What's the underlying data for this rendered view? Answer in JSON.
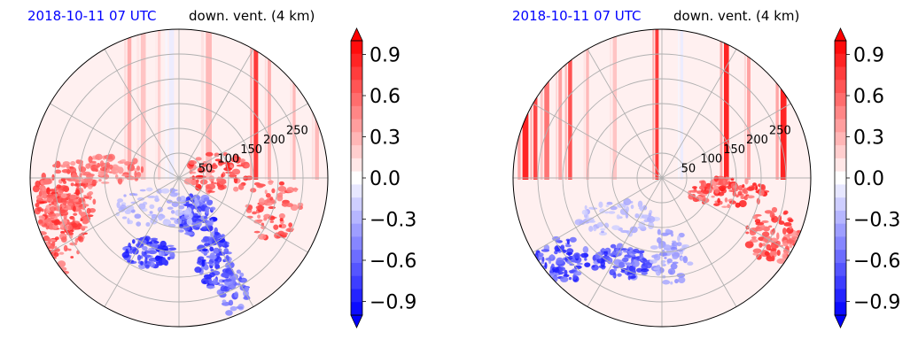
{
  "chart_data": [
    {
      "type": "heatmap",
      "projection": "polar",
      "title_left": "2018-10-11 07 UTC",
      "title_right": "down. vent. (4 km)",
      "title_left_color": "#0000ff",
      "r_ticks": [
        50,
        100,
        150,
        200,
        250
      ],
      "r_tick_labels": [
        "50",
        "100",
        "150",
        "200",
        "250"
      ],
      "r_max": 300,
      "grid": true,
      "colormap": "bwr",
      "colorbar": {
        "vmin": -1.0,
        "vmax": 1.0,
        "ticks": [
          0.9,
          0.6,
          0.3,
          0.0,
          -0.3,
          -0.6,
          -0.9
        ],
        "tick_labels": [
          "0.9",
          "0.6",
          "0.3",
          "0.0",
          "−0.3",
          "−0.6",
          "−0.9"
        ],
        "extend": "both",
        "levels": 21
      },
      "features": {
        "vertical_streaks": [
          {
            "x": -100,
            "width": 8,
            "value": 0.35
          },
          {
            "x": -72,
            "width": 10,
            "value": 0.25
          },
          {
            "x": -40,
            "width": 6,
            "value": 0.2
          },
          {
            "x": 60,
            "width": 12,
            "value": 0.3
          },
          {
            "x": 155,
            "width": 9,
            "value": 0.85
          },
          {
            "x": 182,
            "width": 7,
            "value": 0.35
          },
          {
            "x": 232,
            "width": 6,
            "value": 0.3
          },
          {
            "x": 278,
            "width": 8,
            "value": 0.3
          },
          {
            "x": -15,
            "width": 10,
            "value": -0.08
          }
        ],
        "clusters": [
          {
            "x": -230,
            "y": -40,
            "rx": 60,
            "ry": 70,
            "n": 170,
            "value": 0.9
          },
          {
            "x": -235,
            "y": -105,
            "rx": 45,
            "ry": 90,
            "n": 110,
            "value": 0.85
          },
          {
            "x": -150,
            "y": 15,
            "rx": 80,
            "ry": 30,
            "n": 90,
            "value": 0.7
          },
          {
            "x": 80,
            "y": 10,
            "rx": 70,
            "ry": 40,
            "n": 80,
            "value": 0.95
          },
          {
            "x": 190,
            "y": -60,
            "rx": 55,
            "ry": 65,
            "n": 70,
            "value": 0.9
          },
          {
            "x": 30,
            "y": -75,
            "rx": 45,
            "ry": 40,
            "n": 90,
            "value": -0.95
          },
          {
            "x": -60,
            "y": -150,
            "rx": 50,
            "ry": 30,
            "n": 90,
            "value": -0.95
          },
          {
            "x": 70,
            "y": -165,
            "rx": 35,
            "ry": 60,
            "n": 90,
            "value": -0.95
          },
          {
            "x": 110,
            "y": -230,
            "rx": 30,
            "ry": 45,
            "n": 50,
            "value": -0.8
          },
          {
            "x": -40,
            "y": -60,
            "rx": 90,
            "ry": 40,
            "n": 70,
            "value": -0.4
          }
        ]
      }
    },
    {
      "type": "heatmap",
      "projection": "polar",
      "title_left": "2018-10-11 07 UTC",
      "title_right": "down. vent. (4 km)",
      "title_left_color": "#0000ff",
      "r_ticks": [
        50,
        100,
        150,
        200,
        250
      ],
      "r_tick_labels": [
        "50",
        "100",
        "150",
        "200",
        "250"
      ],
      "r_max": 300,
      "grid": true,
      "colormap": "bwr",
      "colorbar": {
        "vmin": -1.0,
        "vmax": 1.0,
        "ticks": [
          0.9,
          0.6,
          0.3,
          0.0,
          -0.3,
          -0.6,
          -0.9
        ],
        "tick_labels": [
          "0.9",
          "0.6",
          "0.3",
          "0.0",
          "−0.3",
          "−0.6",
          "−0.9"
        ],
        "extend": "both",
        "levels": 21
      },
      "features": {
        "vertical_streaks": [
          {
            "x": -275,
            "width": 12,
            "value": 0.95
          },
          {
            "x": -255,
            "width": 8,
            "value": 0.8
          },
          {
            "x": -232,
            "width": 10,
            "value": 0.6
          },
          {
            "x": -205,
            "width": 7,
            "value": 0.4
          },
          {
            "x": -185,
            "width": 8,
            "value": 0.75
          },
          {
            "x": -150,
            "width": 6,
            "value": 0.3
          },
          {
            "x": -95,
            "width": 8,
            "value": 0.25
          },
          {
            "x": -10,
            "width": 7,
            "value": 0.85
          },
          {
            "x": 130,
            "width": 10,
            "value": 0.95
          },
          {
            "x": 175,
            "width": 7,
            "value": 0.4
          },
          {
            "x": 245,
            "width": 12,
            "value": 0.95
          },
          {
            "x": 40,
            "width": 6,
            "value": -0.08
          }
        ],
        "clusters": [
          {
            "x": 130,
            "y": -30,
            "rx": 80,
            "ry": 30,
            "n": 110,
            "value": 0.95
          },
          {
            "x": 225,
            "y": -115,
            "rx": 55,
            "ry": 55,
            "n": 80,
            "value": 0.9
          },
          {
            "x": -80,
            "y": -170,
            "rx": 60,
            "ry": 35,
            "n": 90,
            "value": -0.9
          },
          {
            "x": -200,
            "y": -165,
            "rx": 55,
            "ry": 45,
            "n": 90,
            "value": -0.95
          },
          {
            "x": 20,
            "y": -155,
            "rx": 40,
            "ry": 60,
            "n": 60,
            "value": -0.5
          },
          {
            "x": -90,
            "y": -80,
            "rx": 80,
            "ry": 35,
            "n": 60,
            "value": -0.35
          }
        ]
      }
    }
  ]
}
